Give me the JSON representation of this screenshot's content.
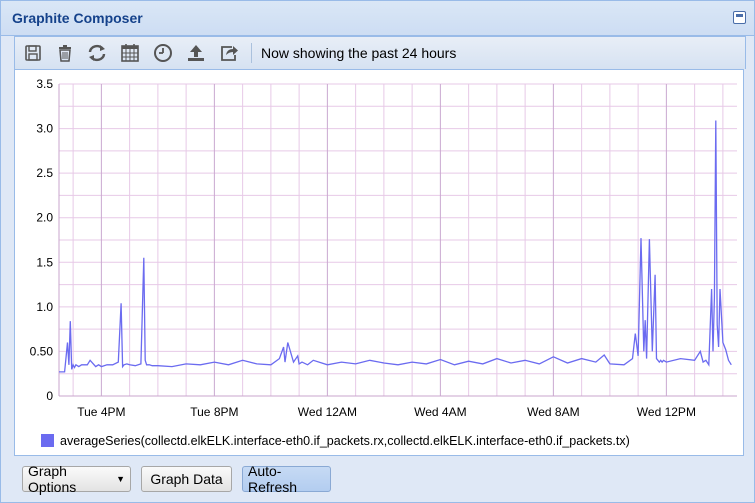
{
  "window": {
    "title": "Graphite Composer"
  },
  "toolbar": {
    "icons": [
      "save-icon",
      "delete-icon",
      "refresh-icon",
      "calendar-icon",
      "clock-icon",
      "upload-icon",
      "share-icon"
    ],
    "status": "Now showing the past 24 hours"
  },
  "buttons": {
    "graph_options": "Graph Options",
    "graph_data": "Graph Data",
    "auto_refresh": "Auto-Refresh"
  },
  "colors": {
    "series": "#6b6bf0",
    "grid": "#e7c9e7",
    "accent": "#15428b"
  },
  "chart_data": {
    "type": "line",
    "title": "",
    "xlabel": "",
    "ylabel": "",
    "ylim": [
      0,
      3.5
    ],
    "yticks": [
      "0",
      "0.50",
      "1.0",
      "1.5",
      "2.0",
      "2.5",
      "3.0",
      "3.5"
    ],
    "xticks": [
      "Tue  4PM",
      "Tue  8PM",
      "Wed 12AM",
      "Wed  4AM",
      "Wed  8AM",
      "Wed 12PM"
    ],
    "x_start_hour": 14.5,
    "x_end_hour": 38.5,
    "legend": [
      "averageSeries(collectd.elkELK.interface-eth0.if_packets.rx,collectd.elkELK.interface-eth0.if_packets.tx)"
    ],
    "series": [
      {
        "name": "averageSeries(collectd.elkELK.interface-eth0.if_packets.rx,collectd.elkELK.interface-eth0.if_packets.tx)",
        "x": [
          14.5,
          14.7,
          14.8,
          14.85,
          14.9,
          14.95,
          15.0,
          15.05,
          15.1,
          15.2,
          15.3,
          15.5,
          15.6,
          15.8,
          15.9,
          16.0,
          16.2,
          16.4,
          16.6,
          16.7,
          16.75,
          16.8,
          16.9,
          17.0,
          17.2,
          17.4,
          17.5,
          17.55,
          17.6,
          17.7,
          17.8,
          18.0,
          18.5,
          19.0,
          19.5,
          20.0,
          20.5,
          21.0,
          21.5,
          22.0,
          22.3,
          22.45,
          22.5,
          22.6,
          22.8,
          22.95,
          23.0,
          23.1,
          23.3,
          23.5,
          24.0,
          24.5,
          25.0,
          25.5,
          26.0,
          26.5,
          27.0,
          27.5,
          28.0,
          28.5,
          29.0,
          29.5,
          30.0,
          30.5,
          31.0,
          31.5,
          32.0,
          32.5,
          33.0,
          33.5,
          33.8,
          34.0,
          34.5,
          34.8,
          34.9,
          35.0,
          35.1,
          35.2,
          35.25,
          35.3,
          35.4,
          35.5,
          35.6,
          35.65,
          35.7,
          35.75,
          35.8,
          35.85,
          35.9,
          36.0,
          36.5,
          37.0,
          37.2,
          37.3,
          37.4,
          37.5,
          37.6,
          37.65,
          37.7,
          37.75,
          37.8,
          37.85,
          37.9,
          38.0,
          38.1,
          38.2,
          38.3
        ],
        "values": [
          0.27,
          0.27,
          0.6,
          0.35,
          0.84,
          0.3,
          0.35,
          0.32,
          0.35,
          0.33,
          0.35,
          0.35,
          0.4,
          0.33,
          0.35,
          0.33,
          0.35,
          0.35,
          0.38,
          1.04,
          0.33,
          0.35,
          0.36,
          0.35,
          0.34,
          0.36,
          1.55,
          0.4,
          0.35,
          0.35,
          0.34,
          0.34,
          0.33,
          0.36,
          0.35,
          0.38,
          0.35,
          0.4,
          0.36,
          0.35,
          0.42,
          0.55,
          0.38,
          0.6,
          0.38,
          0.45,
          0.36,
          0.38,
          0.35,
          0.4,
          0.35,
          0.38,
          0.36,
          0.4,
          0.37,
          0.35,
          0.38,
          0.36,
          0.41,
          0.35,
          0.39,
          0.36,
          0.42,
          0.37,
          0.4,
          0.36,
          0.44,
          0.37,
          0.42,
          0.38,
          0.46,
          0.36,
          0.35,
          0.42,
          0.7,
          0.45,
          1.77,
          0.5,
          0.85,
          0.42,
          1.76,
          0.5,
          1.36,
          0.42,
          0.4,
          0.38,
          0.4,
          0.38,
          0.4,
          0.38,
          0.42,
          0.4,
          0.5,
          0.38,
          0.4,
          0.35,
          1.2,
          0.5,
          1.1,
          3.09,
          0.8,
          0.55,
          1.2,
          0.6,
          0.52,
          0.4,
          0.35
        ]
      }
    ]
  }
}
